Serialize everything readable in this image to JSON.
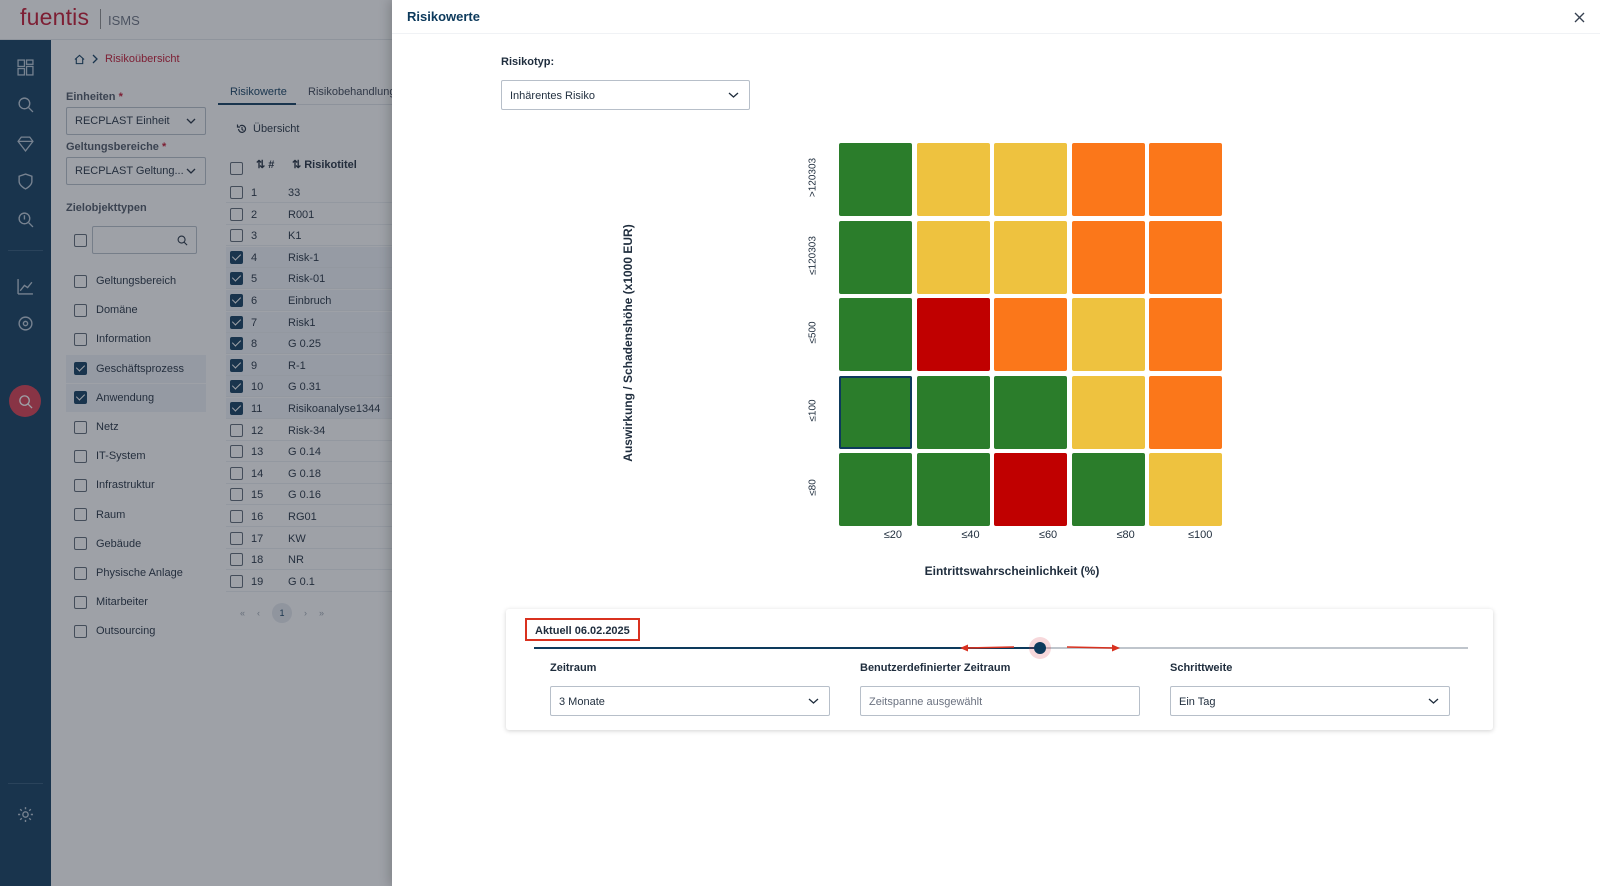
{
  "app": {
    "brand": "fuentis",
    "product": "ISMS"
  },
  "breadcrumb": {
    "current": "Risikoübersicht"
  },
  "filters": {
    "units_label": "Einheiten",
    "units_value": "RECPLAST Einheit",
    "scopes_label": "Geltungsbereiche",
    "scopes_value": "RECPLAST Geltung...",
    "types_label": "Zielobjekttypen",
    "types": [
      {
        "label": "Geltungsbereich",
        "checked": false
      },
      {
        "label": "Domäne",
        "checked": false
      },
      {
        "label": "Information",
        "checked": false
      },
      {
        "label": "Geschäftsprozess",
        "checked": true
      },
      {
        "label": "Anwendung",
        "checked": true
      },
      {
        "label": "Netz",
        "checked": false
      },
      {
        "label": "IT-System",
        "checked": false
      },
      {
        "label": "Infrastruktur",
        "checked": false
      },
      {
        "label": "Raum",
        "checked": false
      },
      {
        "label": "Gebäude",
        "checked": false
      },
      {
        "label": "Physische Anlage",
        "checked": false
      },
      {
        "label": "Mitarbeiter",
        "checked": false
      },
      {
        "label": "Outsourcing",
        "checked": false
      }
    ]
  },
  "list": {
    "tabs": [
      "Risikowerte",
      "Risikobehandlunge"
    ],
    "overview_button": "Übersicht",
    "col_num": "#",
    "col_title": "Risikotitel",
    "rows": [
      {
        "num": "1",
        "title": "33",
        "checked": false
      },
      {
        "num": "2",
        "title": "R001",
        "checked": false
      },
      {
        "num": "3",
        "title": "K1",
        "checked": false
      },
      {
        "num": "4",
        "title": "Risk-1",
        "checked": true
      },
      {
        "num": "5",
        "title": "Risk-01",
        "checked": true
      },
      {
        "num": "6",
        "title": "Einbruch",
        "checked": true
      },
      {
        "num": "7",
        "title": "Risk1",
        "checked": true
      },
      {
        "num": "8",
        "title": "G 0.25",
        "checked": true
      },
      {
        "num": "9",
        "title": "R-1",
        "checked": true
      },
      {
        "num": "10",
        "title": "G 0.31",
        "checked": true
      },
      {
        "num": "11",
        "title": "Risikoanalyse1344",
        "checked": true
      },
      {
        "num": "12",
        "title": "Risk-34",
        "checked": false
      },
      {
        "num": "13",
        "title": "G 0.14",
        "checked": false
      },
      {
        "num": "14",
        "title": "G 0.18",
        "checked": false
      },
      {
        "num": "15",
        "title": "G 0.16",
        "checked": false
      },
      {
        "num": "16",
        "title": "RG01",
        "checked": false
      },
      {
        "num": "17",
        "title": "KW",
        "checked": false
      },
      {
        "num": "18",
        "title": "NR",
        "checked": false
      },
      {
        "num": "19",
        "title": "G 0.1",
        "checked": false
      }
    ],
    "pager": {
      "first": "«",
      "prev": "‹",
      "page": "1",
      "next": "›",
      "last": "»"
    }
  },
  "dialog": {
    "title": "Risikowerte",
    "risktype_label": "Risikotyp:",
    "risktype_value": "Inhärentes Risiko"
  },
  "chart_data": {
    "type": "heatmap",
    "title": "",
    "xlabel": "Eintrittswahrscheinlichkeit (%)",
    "ylabel": "Auswirkung / Schadenshöhe (x1000 EUR)",
    "x_categories": [
      "≤20",
      "≤40",
      "≤60",
      "≤80",
      "≤100"
    ],
    "y_categories_top_to_bottom": [
      ">120303",
      "≤120303",
      "≤500",
      "≤100",
      "≤80"
    ],
    "levels": [
      "green",
      "yellow",
      "orange",
      "red"
    ],
    "level_colors": {
      "green": "#2b7d2b",
      "yellow": "#eec23f",
      "orange": "#fb771a",
      "red": "#c00000"
    },
    "cells": [
      [
        "green",
        "yellow",
        "yellow",
        "orange",
        "orange"
      ],
      [
        "green",
        "yellow",
        "yellow",
        "orange",
        "orange"
      ],
      [
        "green",
        "red",
        "orange",
        "yellow",
        "orange"
      ],
      [
        "green",
        "green",
        "green",
        "yellow",
        "orange"
      ],
      [
        "green",
        "green",
        "red",
        "green",
        "yellow"
      ]
    ],
    "highlighted_cell": {
      "row": 3,
      "col": 0
    }
  },
  "timeline": {
    "current_label": "Aktuell 06.02.2025",
    "slider_position": 0.54,
    "period_label": "Zeitraum",
    "period_value": "3 Monate",
    "custom_label": "Benutzerdefinierter Zeitraum",
    "custom_placeholder": "Zeitspanne ausgewählt",
    "step_label": "Schrittweite",
    "step_value": "Ein Tag"
  },
  "colors": {
    "primary": "#0d3a5c",
    "brand": "#c4132f",
    "annotation": "#d9311f"
  }
}
